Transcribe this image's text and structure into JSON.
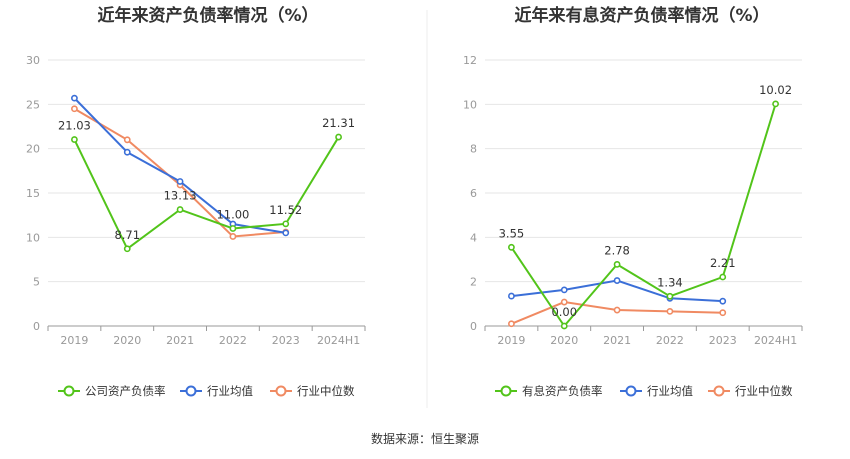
{
  "source": "数据来源：恒生聚源",
  "chart_data": [
    {
      "type": "line",
      "title": "近年来资产负债率情况（%）",
      "categories": [
        "2019",
        "2020",
        "2021",
        "2022",
        "2023",
        "2024H1"
      ],
      "ylim": [
        0,
        30
      ],
      "yticks": [
        0,
        5,
        10,
        15,
        20,
        25,
        30
      ],
      "grid": true,
      "legend_position": "bottom",
      "series": [
        {
          "name": "公司资产负债率",
          "color": "#52c41a",
          "values": [
            21.03,
            8.71,
            13.13,
            11.0,
            11.52,
            21.31
          ],
          "labels": [
            "21.03",
            "8.71",
            "13.13",
            "11.00",
            "11.52",
            "21.31"
          ]
        },
        {
          "name": "行业均值",
          "color": "#3b6fd8",
          "values": [
            25.7,
            19.6,
            16.3,
            11.5,
            10.5,
            null
          ]
        },
        {
          "name": "行业中位数",
          "color": "#f08a62",
          "values": [
            24.5,
            21.0,
            15.9,
            10.1,
            10.6,
            null
          ]
        }
      ]
    },
    {
      "type": "line",
      "title": "近年来有息资产负债率情况（%）",
      "categories": [
        "2019",
        "2020",
        "2021",
        "2022",
        "2023",
        "2024H1"
      ],
      "ylim": [
        0,
        12
      ],
      "yticks": [
        0,
        2,
        4,
        6,
        8,
        10,
        12
      ],
      "grid": true,
      "legend_position": "bottom",
      "series": [
        {
          "name": "有息资产负债率",
          "color": "#52c41a",
          "values": [
            3.55,
            0.0,
            2.78,
            1.34,
            2.21,
            10.02
          ],
          "labels": [
            "3.55",
            "0.00",
            "2.78",
            "1.34",
            "2.21",
            "10.02"
          ]
        },
        {
          "name": "行业均值",
          "color": "#3b6fd8",
          "values": [
            1.35,
            1.63,
            2.05,
            1.25,
            1.12,
            null
          ]
        },
        {
          "name": "行业中位数",
          "color": "#f08a62",
          "values": [
            0.1,
            1.08,
            0.72,
            0.66,
            0.6,
            null
          ]
        }
      ]
    }
  ]
}
